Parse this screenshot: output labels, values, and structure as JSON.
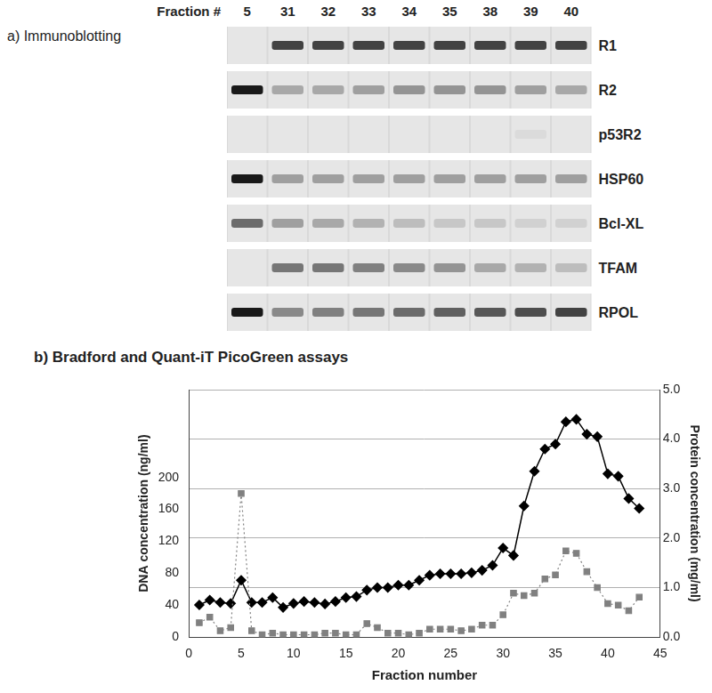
{
  "blot": {
    "title": "a) Immunoblotting",
    "header": "Fraction #",
    "lanes": [
      "5",
      "31",
      "32",
      "33",
      "34",
      "35",
      "38",
      "39",
      "40"
    ],
    "rows": [
      {
        "label": "R1",
        "intensities": [
          0,
          0.8,
          0.8,
          0.8,
          0.8,
          0.8,
          0.8,
          0.8,
          0.8
        ]
      },
      {
        "label": "R2",
        "intensities": [
          1,
          0.3,
          0.3,
          0.35,
          0.4,
          0.4,
          0.4,
          0.35,
          0.3
        ]
      },
      {
        "label": "p53R2",
        "intensities": [
          0,
          0,
          0,
          0,
          0,
          0,
          0,
          0.05,
          0
        ]
      },
      {
        "label": "HSP60",
        "intensities": [
          1,
          0.35,
          0.35,
          0.35,
          0.35,
          0.35,
          0.35,
          0.35,
          0.35
        ]
      },
      {
        "label": "Bcl-XL",
        "intensities": [
          0.6,
          0.35,
          0.3,
          0.25,
          0.2,
          0.15,
          0.15,
          0.1,
          0.1
        ]
      },
      {
        "label": "TFAM",
        "intensities": [
          0,
          0.55,
          0.55,
          0.5,
          0.45,
          0.4,
          0.3,
          0.25,
          0.2
        ]
      },
      {
        "label": "RPOL",
        "intensities": [
          1,
          0.45,
          0.5,
          0.55,
          0.6,
          0.65,
          0.7,
          0.75,
          0.8
        ]
      }
    ]
  },
  "chart_data": {
    "type": "line",
    "title": "b) Bradford and Quant-iT PicoGreen assays",
    "x_label": "Fraction number",
    "y_label": "DNA concentration (ng/ml)",
    "y2_label": "Protein concentration (mg/ml)",
    "x": [
      1,
      2,
      3,
      4,
      5,
      6,
      7,
      8,
      9,
      10,
      11,
      12,
      13,
      14,
      15,
      16,
      17,
      18,
      19,
      20,
      21,
      22,
      23,
      24,
      25,
      26,
      27,
      28,
      29,
      30,
      31,
      32,
      33,
      34,
      35,
      36,
      37,
      38,
      39,
      40,
      41,
      42,
      43
    ],
    "series": [
      {
        "color": "#808080",
        "marker": "square",
        "line_style": "dotted",
        "axis": "y",
        "values": [
          18,
          25,
          8,
          12,
          180,
          8,
          3,
          5,
          3,
          3,
          3,
          3,
          5,
          5,
          3,
          3,
          17,
          12,
          5,
          5,
          3,
          5,
          10,
          10,
          10,
          8,
          10,
          15,
          15,
          28,
          55,
          52,
          55,
          73,
          78,
          108,
          105,
          82,
          62,
          42,
          40,
          33,
          50
        ]
      },
      {
        "color": "#000000",
        "marker": "diamond",
        "line_style": "solid",
        "axis": "y2",
        "values": [
          0.65,
          0.75,
          0.7,
          0.68,
          1.15,
          0.7,
          0.7,
          0.8,
          0.6,
          0.68,
          0.72,
          0.7,
          0.67,
          0.72,
          0.8,
          0.82,
          0.95,
          1.0,
          1.0,
          1.05,
          1.05,
          1.15,
          1.25,
          1.28,
          1.28,
          1.28,
          1.3,
          1.35,
          1.45,
          1.8,
          1.65,
          2.65,
          3.35,
          3.8,
          3.9,
          4.35,
          4.4,
          4.1,
          4.05,
          3.3,
          3.25,
          2.8,
          2.6
        ]
      }
    ],
    "xlim": [
      0,
      45
    ],
    "xticks": [
      0,
      5,
      10,
      15,
      20,
      25,
      30,
      35,
      40,
      45
    ],
    "ylim": [
      0,
      310
    ],
    "yticks": [
      0,
      40,
      80,
      120,
      160,
      200
    ],
    "y2lim": [
      0,
      5
    ],
    "y2ticks": [
      {
        "value": 0,
        "label": "0.0"
      },
      {
        "value": 1,
        "label": "1.0"
      },
      {
        "value": 2,
        "label": "2.0"
      },
      {
        "value": 3,
        "label": "3.0"
      },
      {
        "value": 4,
        "label": "4.0"
      },
      {
        "value": 5,
        "label": "5.0"
      }
    ],
    "grid": true
  }
}
